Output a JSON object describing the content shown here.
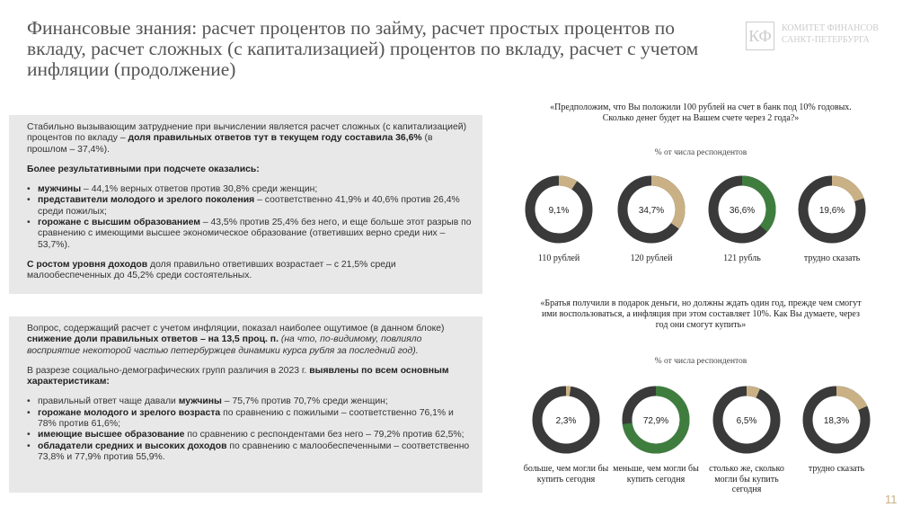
{
  "header": {
    "title": "Финансовые знания: расчет процентов по займу, расчет простых процентов по вкладу, расчет сложных (с капитализацией) процентов по вкладу, расчет с учетом инфляции (продолжение)",
    "logo": [
      "КОМИТЕТ ФИНАНСОВ",
      "САНКТ-ПЕТЕРБУРГА"
    ]
  },
  "left": [
    {
      "paragraphs": [
        {
          "runs": [
            {
              "text": "Стабильно вызывающим затруднение при вычислении является расчет сложных (с капитализацией) процентов по вкладу – "
            },
            {
              "text": "доля правильных ответов тут в текущем году составила 36,6%",
              "style": "bold"
            },
            {
              "text": " (в прошлом – 37,4%)."
            }
          ]
        },
        {
          "runs": [
            {
              "text": "Более результативными при подсчете оказались:",
              "style": "bold"
            }
          ]
        },
        {
          "bullet": true,
          "runs": [
            {
              "text": "мужчины",
              "style": "bold"
            },
            {
              "text": " – 44,1% верных ответов против 30,8% среди женщин;"
            }
          ]
        },
        {
          "bullet": true,
          "runs": [
            {
              "text": "представители молодого и зрелого поколения",
              "style": "bold"
            },
            {
              "text": " – соответственно 41,9% и 40,6% против 26,4% среди пожилых;"
            }
          ]
        },
        {
          "bullet": true,
          "runs": [
            {
              "text": "горожане с высшим образованием",
              "style": "bold"
            },
            {
              "text": " – 43,5% против 25,4% без него, и еще больше этот разрыв по сравнению с имеющими высшее экономическое образование (ответивших верно среди них – 53,7%)."
            }
          ]
        },
        {
          "runs": [
            {
              "text": "С ростом уровня доходов",
              "style": "bold"
            },
            {
              "text": " доля правильно ответивших возрастает – с 21,5% среди малообеспеченных до 45,2% среди состоятельных."
            }
          ]
        }
      ]
    },
    {
      "paragraphs": [
        {
          "runs": [
            {
              "text": "Вопрос, содержащий расчет с учетом инфляции, показал наиболее ощутимое (в данном блоке) "
            },
            {
              "text": "снижение доли правильных ответов – на 13,5 проц. п.",
              "style": "bold"
            },
            {
              "text": " (на что, по-видимому, повлияло восприятие некоторой частью петербуржцев динамики курса рубля за последний год).",
              "style": "italic"
            }
          ]
        },
        {
          "runs": [
            {
              "text": "В разрезе социально-демографических групп различия в 2023 г. "
            },
            {
              "text": "выявлены по всем основным характеристикам:",
              "style": "bold"
            }
          ]
        },
        {
          "bullet": true,
          "runs": [
            {
              "text": "правильный ответ чаще давали "
            },
            {
              "text": "мужчины",
              "style": "bold"
            },
            {
              "text": " – 75,7% против 70,7% среди женщин;"
            }
          ]
        },
        {
          "bullet": true,
          "runs": [
            {
              "text": "горожане молодого и зрелого возраста",
              "style": "bold"
            },
            {
              "text": " по сравнению с пожилыми – соответственно 76,1% и 78% против 61,6%;"
            }
          ]
        },
        {
          "bullet": true,
          "runs": [
            {
              "text": "имеющие высшее образование",
              "style": "bold"
            },
            {
              "text": " по сравнению с респондентами без него – 79,2% против 62,5%;"
            }
          ]
        },
        {
          "bullet": true,
          "runs": [
            {
              "text": "обладатели средних и высоких доходов",
              "style": "bold"
            },
            {
              "text": " по сравнению с малообеспеченными – соответственно 73,8% и 77,9% против 55,9%."
            }
          ]
        }
      ]
    }
  ],
  "chart_data": [
    {
      "type": "donut",
      "title": "«Предположим, что Вы положили 100 рублей на счет в банк под 10% годовых. Сколько денег будет на Вашем счете через 2 года?»",
      "subtitle": "% от числа респондентов",
      "categories": [
        "110 рублей",
        "120 рублей",
        "121 рубль",
        "трудно сказать"
      ],
      "values": [
        9.1,
        34.7,
        36.6,
        19.6
      ],
      "value_labels": [
        "9,1%",
        "34,7%",
        "36,6%",
        "19,6%"
      ],
      "colors": [
        "#c9b185",
        "#c9b185",
        "#3f7d3f",
        "#c9b185"
      ]
    },
    {
      "type": "donut",
      "title": "«Братья получили в подарок деньги, но должны ждать один год, прежде чем смогут ими воспользоваться, а инфляция при этом составляет 10%. Как Вы думаете, через год они смогут купить»",
      "subtitle": "% от числа респондентов",
      "categories": [
        "больше, чем могли бы купить сегодня",
        "меньше, чем могли бы купить сегодня",
        "столько же, сколько могли бы купить сегодня",
        "трудно сказать"
      ],
      "values": [
        2.3,
        72.9,
        6.5,
        18.3
      ],
      "value_labels": [
        "2,3%",
        "72,9%",
        "6,5%",
        "18,3%"
      ],
      "colors": [
        "#c9b185",
        "#3f7d3f",
        "#c9b185",
        "#c9b185"
      ]
    }
  ],
  "page_number": "11"
}
